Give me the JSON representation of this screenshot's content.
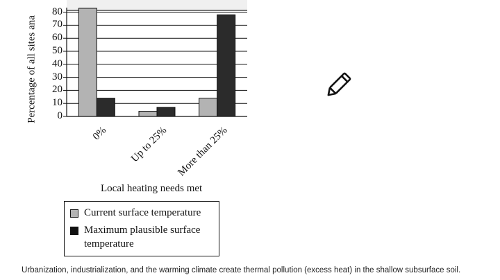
{
  "chart_data": {
    "type": "bar",
    "title": "",
    "xlabel": "Local heating needs met",
    "ylabel": "Percentage of all sites analyzed",
    "ylabel_visible": "Percentage of all sites ana",
    "categories": [
      "0%",
      "Up to 25%",
      "More than 25%"
    ],
    "series": [
      {
        "name": "Current surface temperature",
        "color": "#b3b3b3",
        "values": [
          83,
          4,
          14
        ]
      },
      {
        "name": "Maximum plausible surface temperature",
        "color": "#2b2b2b",
        "values": [
          14,
          7,
          78
        ]
      }
    ],
    "ylim": [
      0,
      80
    ],
    "yticks": [
      0,
      10,
      20,
      30,
      40,
      50,
      60,
      70,
      80
    ],
    "grid": true,
    "legend_position": "bottom-left"
  },
  "legend": {
    "item1": "Current surface temperature",
    "item2_line1": "Maximum plausible surface",
    "item2_line2": "temperature"
  },
  "caption": "Urbanization, industrialization, and the warming climate create thermal pollution (excess heat) in the shallow subsurface soil.",
  "icons": {
    "edit": "pencil-icon"
  }
}
